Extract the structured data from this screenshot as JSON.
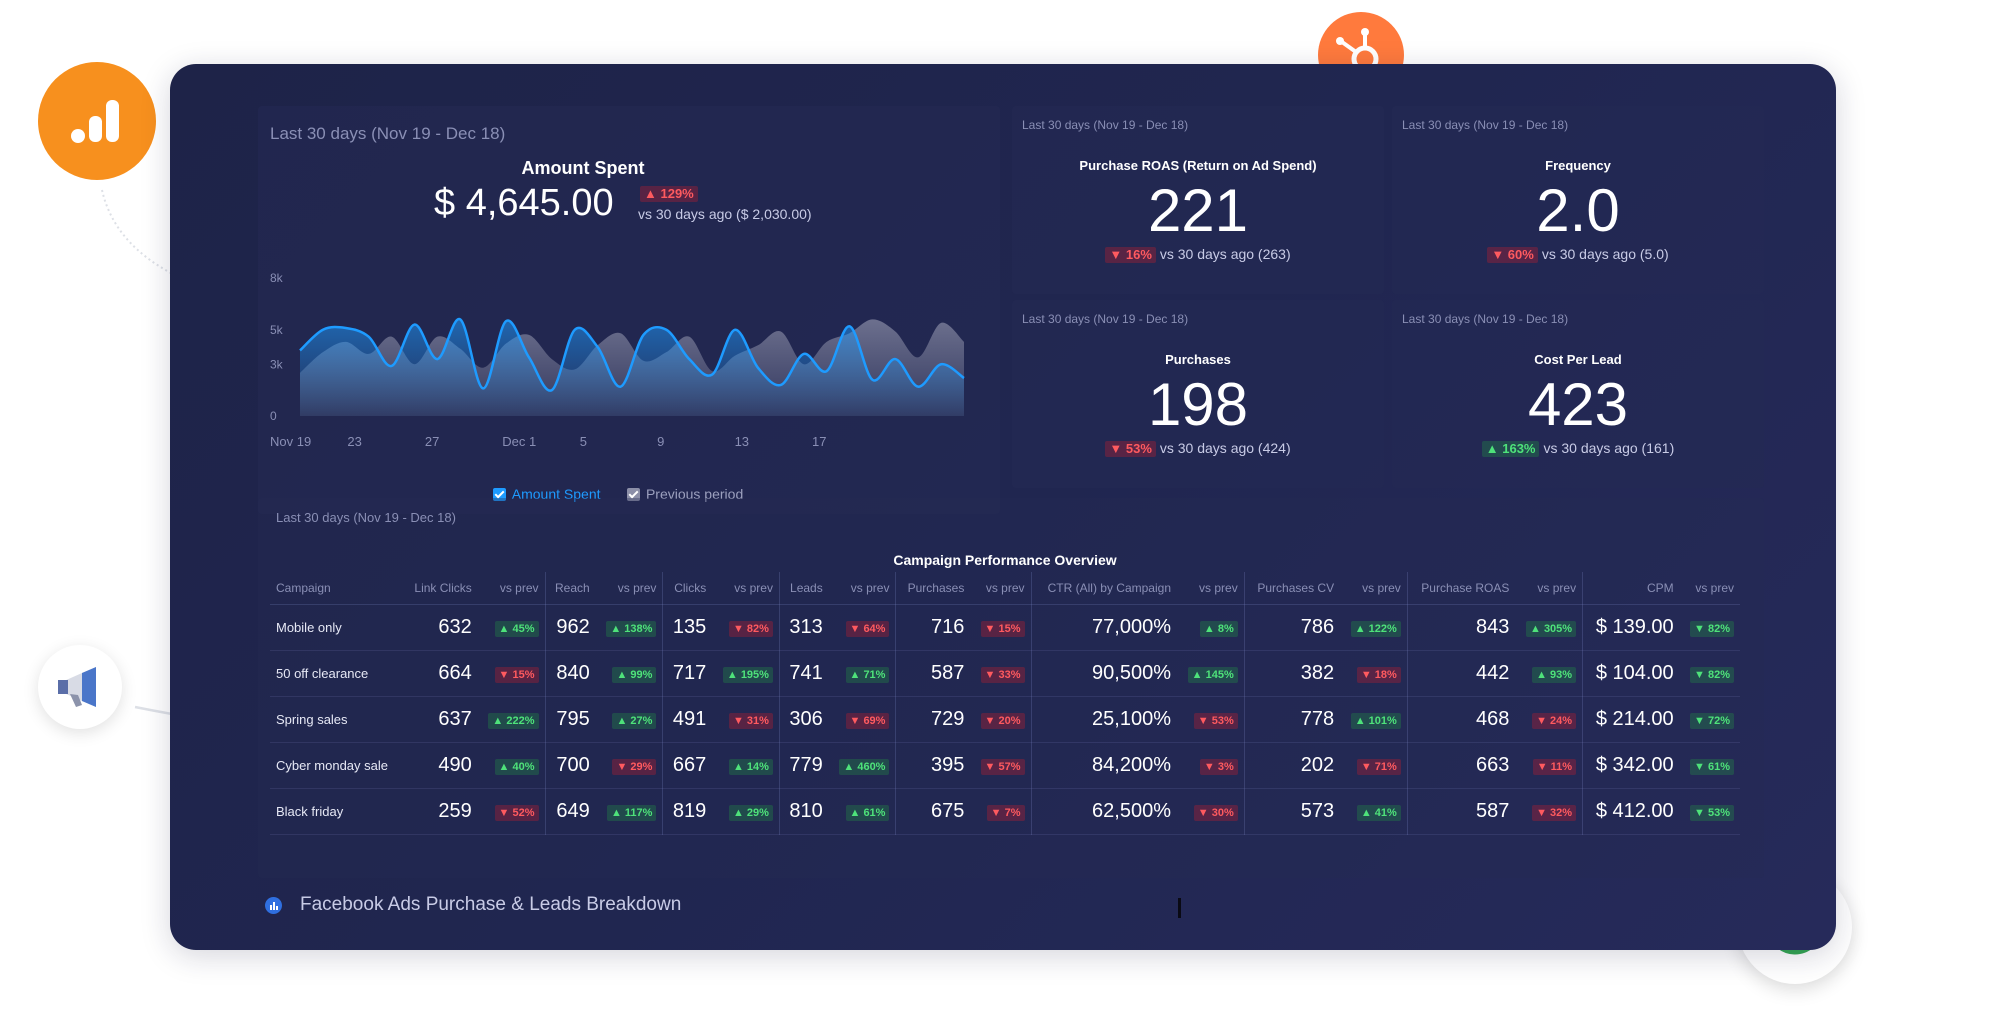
{
  "amount_spent": {
    "period": "Last 30 days (Nov 19 - Dec 18)",
    "title": "Amount Spent",
    "value": "$ 4,645.00",
    "change": "▲ 129%",
    "comparison": "vs 30 days ago ($ 2,030.00)",
    "legend": {
      "current": "Amount Spent",
      "previous": "Previous period"
    }
  },
  "chart_data": {
    "type": "area",
    "x": [
      "Nov 19",
      "20",
      "21",
      "22",
      "23",
      "24",
      "25",
      "26",
      "27",
      "28",
      "29",
      "30",
      "Dec 1",
      "2",
      "3",
      "4",
      "5",
      "6",
      "7",
      "8",
      "9",
      "10",
      "11",
      "12",
      "13",
      "14",
      "15",
      "16",
      "17",
      "18"
    ],
    "x_tick_labels": [
      "Nov 19",
      "23",
      "27",
      "Dec 1",
      "5",
      "9",
      "13",
      "17"
    ],
    "y_tick_labels": [
      "8k",
      "5k",
      "3k",
      "0"
    ],
    "ylim": [
      0,
      8000
    ],
    "series": [
      {
        "name": "Amount Spent",
        "values": [
          3800,
          5000,
          5100,
          4600,
          2900,
          5300,
          3300,
          5600,
          1600,
          5500,
          3400,
          1500,
          5000,
          4000,
          1700,
          4700,
          5000,
          3300,
          2400,
          5000,
          2800,
          1800,
          3600,
          2600,
          5200,
          2100,
          3300,
          1700,
          3000,
          2200
        ]
      },
      {
        "name": "Previous period",
        "values": [
          2500,
          3700,
          4300,
          3600,
          4600,
          3000,
          4600,
          3900,
          2800,
          4200,
          4700,
          3300,
          2700,
          4100,
          4800,
          3200,
          3700,
          4600,
          2600,
          3500,
          4100,
          4900,
          3000,
          4300,
          4800,
          5600,
          4900,
          3400,
          5400,
          4300
        ]
      }
    ],
    "grid": false,
    "legend": "bottom"
  },
  "kpis": [
    {
      "period": "Last 30 days (Nov 19 - Dec 18)",
      "title": "Purchase ROAS (Return on Ad Spend)",
      "value": "221",
      "change": "▼ 16%",
      "change_dir": "down",
      "comparison": "vs 30 days ago (263)"
    },
    {
      "period": "Last 30 days (Nov 19 - Dec 18)",
      "title": "Frequency",
      "value": "2.0",
      "change": "▼ 60%",
      "change_dir": "down",
      "comparison": "vs 30 days ago (5.0)"
    },
    {
      "period": "Last 30 days (Nov 19 - Dec 18)",
      "title": "Purchases",
      "value": "198",
      "change": "▼ 53%",
      "change_dir": "down",
      "comparison": "vs 30 days ago (424)"
    },
    {
      "period": "Last 30 days (Nov 19 - Dec 18)",
      "title": "Cost Per Lead",
      "value": "423",
      "change": "▲ 163%",
      "change_dir": "up",
      "comparison": "vs 30 days ago (161)"
    }
  ],
  "table": {
    "period": "Last 30 days (Nov 19 - Dec 18)",
    "title": "Campaign Performance Overview",
    "headers": [
      "Campaign",
      "Link Clicks",
      "vs prev",
      "Reach",
      "vs prev",
      "Clicks",
      "vs prev",
      "Leads",
      "vs prev",
      "Purchases",
      "vs prev",
      "CTR (All) by Campaign",
      "vs prev",
      "Purchases CV",
      "vs prev",
      "Purchase ROAS",
      "vs prev",
      "CPM",
      "vs prev"
    ],
    "rows": [
      {
        "campaign": "Mobile only",
        "cells": [
          [
            "632",
            "▲ 45%",
            "up"
          ],
          [
            "962",
            "▲ 138%",
            "up"
          ],
          [
            "135",
            "▼ 82%",
            "down"
          ],
          [
            "313",
            "▼ 64%",
            "down"
          ],
          [
            "716",
            "▼ 15%",
            "down"
          ],
          [
            "77,000%",
            "▲ 8%",
            "up"
          ],
          [
            "786",
            "▲ 122%",
            "up"
          ],
          [
            "843",
            "▲ 305%",
            "up"
          ],
          [
            "$ 139.00",
            "▼ 82%",
            "up"
          ]
        ]
      },
      {
        "campaign": "50 off clearance",
        "cells": [
          [
            "664",
            "▼ 15%",
            "down"
          ],
          [
            "840",
            "▲ 99%",
            "up"
          ],
          [
            "717",
            "▲ 195%",
            "up"
          ],
          [
            "741",
            "▲ 71%",
            "up"
          ],
          [
            "587",
            "▼ 33%",
            "down"
          ],
          [
            "90,500%",
            "▲ 145%",
            "up"
          ],
          [
            "382",
            "▼ 18%",
            "down"
          ],
          [
            "442",
            "▲ 93%",
            "up"
          ],
          [
            "$ 104.00",
            "▼ 82%",
            "up"
          ]
        ]
      },
      {
        "campaign": "Spring sales",
        "cells": [
          [
            "637",
            "▲ 222%",
            "up"
          ],
          [
            "795",
            "▲ 27%",
            "up"
          ],
          [
            "491",
            "▼ 31%",
            "down"
          ],
          [
            "306",
            "▼ 69%",
            "down"
          ],
          [
            "729",
            "▼ 20%",
            "down"
          ],
          [
            "25,100%",
            "▼ 53%",
            "down"
          ],
          [
            "778",
            "▲ 101%",
            "up"
          ],
          [
            "468",
            "▼ 24%",
            "down"
          ],
          [
            "$ 214.00",
            "▼ 72%",
            "up"
          ]
        ]
      },
      {
        "campaign": "Cyber monday sale",
        "cells": [
          [
            "490",
            "▲ 40%",
            "up"
          ],
          [
            "700",
            "▼ 29%",
            "down"
          ],
          [
            "667",
            "▲ 14%",
            "up"
          ],
          [
            "779",
            "▲ 460%",
            "up"
          ],
          [
            "395",
            "▼ 57%",
            "down"
          ],
          [
            "84,200%",
            "▼ 3%",
            "down"
          ],
          [
            "202",
            "▼ 71%",
            "down"
          ],
          [
            "663",
            "▼ 11%",
            "down"
          ],
          [
            "$ 342.00",
            "▼ 61%",
            "up"
          ]
        ]
      },
      {
        "campaign": "Black friday",
        "cells": [
          [
            "259",
            "▼ 52%",
            "down"
          ],
          [
            "649",
            "▲ 117%",
            "up"
          ],
          [
            "819",
            "▲ 29%",
            "up"
          ],
          [
            "810",
            "▲ 61%",
            "up"
          ],
          [
            "675",
            "▼ 7%",
            "down"
          ],
          [
            "62,500%",
            "▼ 30%",
            "down"
          ],
          [
            "573",
            "▲ 41%",
            "up"
          ],
          [
            "587",
            "▼ 32%",
            "down"
          ],
          [
            "$ 412.00",
            "▼ 53%",
            "up"
          ]
        ]
      }
    ]
  },
  "footer": {
    "dashboard_name": "Facebook Ads Purchase & Leads Breakdown"
  },
  "colors": {
    "background": "#1e2348",
    "accent_blue": "#1e9bff",
    "previous_gray": "#8c8fa8",
    "up_green": "#4ee27a",
    "down_red": "#ff5a5f",
    "analytics_orange": "#f7901e",
    "hubspot_orange": "#ff7a3d"
  },
  "icons": [
    "google-analytics-icon",
    "hubspot-icon",
    "megaphone-icon",
    "google-icon",
    "databox-icon"
  ]
}
